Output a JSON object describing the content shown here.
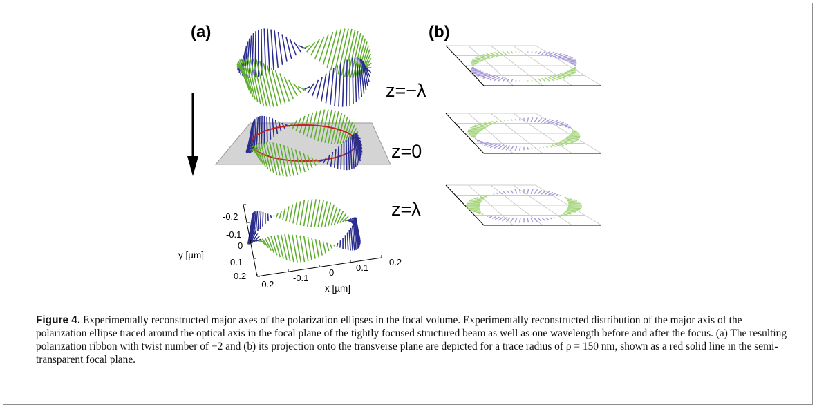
{
  "figure": {
    "panel_a_label": "(a)",
    "panel_b_label": "(b)",
    "z_labels": [
      "z=−λ",
      "z=0",
      "z=λ"
    ],
    "x_axis_label": "x [µm]",
    "y_axis_label": "y [µm]",
    "x_ticks": [
      "-0.2",
      "-0.1",
      "0",
      "0.1",
      "0.2"
    ],
    "y_ticks": [
      "-0.2",
      "-0.1",
      "0",
      "0.1",
      "0.2"
    ],
    "colors": {
      "green": "#5fae2e",
      "blue": "#2a2c8f",
      "red": "#c8201f",
      "plane": "#d4d4d4",
      "light_green": "#a6d67e",
      "light_blue": "#a89ad6"
    }
  },
  "caption": {
    "lead": "Figure 4.",
    "text": " Experimentally reconstructed major axes of the polarization ellipses in the focal volume. Experimentally reconstructed distribution of the major axis of the polarization ellipse traced around the optical axis in the focal plane of the tightly focused structured beam as well as one wavelength before and after the focus. (a) The resulting polarization ribbon with twist number of −2 and (b) its projection onto the transverse plane are depicted for a trace radius of ρ = 150 nm, shown as a red solid line in the semi-transparent focal plane."
  }
}
